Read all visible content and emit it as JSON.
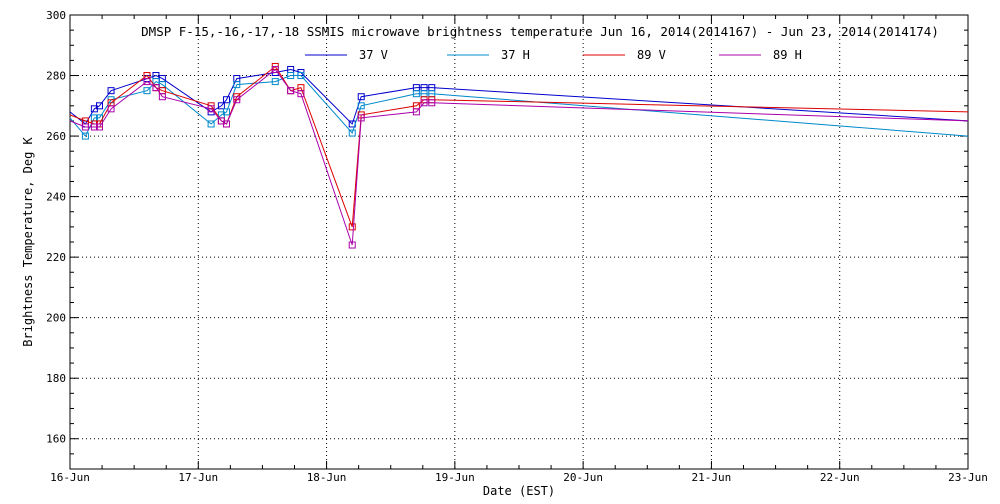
{
  "chart_data": {
    "type": "line",
    "title": "DMSP F-15,-16,-17,-18 SSMIS microwave brightness temperature Jun 16, 2014(2014167) - Jun 23, 2014(2014174)",
    "xlabel": "Date (EST)",
    "ylabel": "Brightness Temperature, Deg K",
    "xlim": [
      0,
      7
    ],
    "ylim": [
      150,
      300
    ],
    "grid": true,
    "legend_position": "top-center",
    "x_ticks": [
      {
        "value": 0,
        "label": "16-Jun"
      },
      {
        "value": 1,
        "label": "17-Jun"
      },
      {
        "value": 2,
        "label": "18-Jun"
      },
      {
        "value": 3,
        "label": "19-Jun"
      },
      {
        "value": 4,
        "label": "20-Jun"
      },
      {
        "value": 5,
        "label": "21-Jun"
      },
      {
        "value": 6,
        "label": "22-Jun"
      },
      {
        "value": 7,
        "label": "23-Jun"
      }
    ],
    "y_ticks": [
      160,
      180,
      200,
      220,
      240,
      260,
      280,
      300
    ],
    "series": [
      {
        "name": "37 V",
        "color": "#0000cc",
        "x": [
          0.0,
          0.12,
          0.19,
          0.23,
          0.32,
          0.6,
          0.67,
          0.72,
          1.1,
          1.18,
          1.22,
          1.3,
          1.6,
          1.72,
          1.8,
          2.2,
          2.27,
          2.7,
          2.76,
          2.82,
          7.0
        ],
        "y": [
          268,
          264,
          269,
          270,
          275,
          279,
          280,
          279,
          268,
          270,
          272,
          279,
          281,
          282,
          281,
          264,
          273,
          276,
          276,
          276,
          265
        ]
      },
      {
        "name": "37 H",
        "color": "#0088cc",
        "x": [
          0.0,
          0.12,
          0.19,
          0.23,
          0.32,
          0.6,
          0.67,
          0.72,
          1.1,
          1.18,
          1.22,
          1.3,
          1.6,
          1.72,
          1.8,
          2.2,
          2.27,
          2.7,
          2.76,
          2.82,
          7.0
        ],
        "y": [
          266,
          260,
          266,
          266,
          272,
          275,
          278,
          277,
          264,
          267,
          268,
          277,
          278,
          280,
          280,
          261,
          270,
          274,
          274,
          274,
          260
        ]
      },
      {
        "name": "89 V",
        "color": "#dd0000",
        "x": [
          0.0,
          0.12,
          0.19,
          0.23,
          0.32,
          0.6,
          0.67,
          0.72,
          1.1,
          1.18,
          1.22,
          1.3,
          1.6,
          1.72,
          1.8,
          2.2,
          2.27,
          2.7,
          2.76,
          2.82,
          7.0
        ],
        "y": [
          267,
          265,
          264,
          264,
          271,
          280,
          276,
          275,
          270,
          265,
          264,
          273,
          283,
          275,
          276,
          230,
          267,
          270,
          272,
          272,
          268
        ]
      },
      {
        "name": "89 H",
        "color": "#aa00aa",
        "x": [
          0.0,
          0.12,
          0.19,
          0.23,
          0.32,
          0.6,
          0.67,
          0.72,
          1.1,
          1.18,
          1.22,
          1.3,
          1.6,
          1.72,
          1.8,
          2.2,
          2.27,
          2.7,
          2.76,
          2.82,
          7.0
        ],
        "y": [
          265,
          263,
          263,
          263,
          269,
          278,
          276,
          273,
          269,
          265,
          264,
          272,
          282,
          275,
          274,
          224,
          266,
          268,
          271,
          271,
          265
        ]
      }
    ]
  }
}
